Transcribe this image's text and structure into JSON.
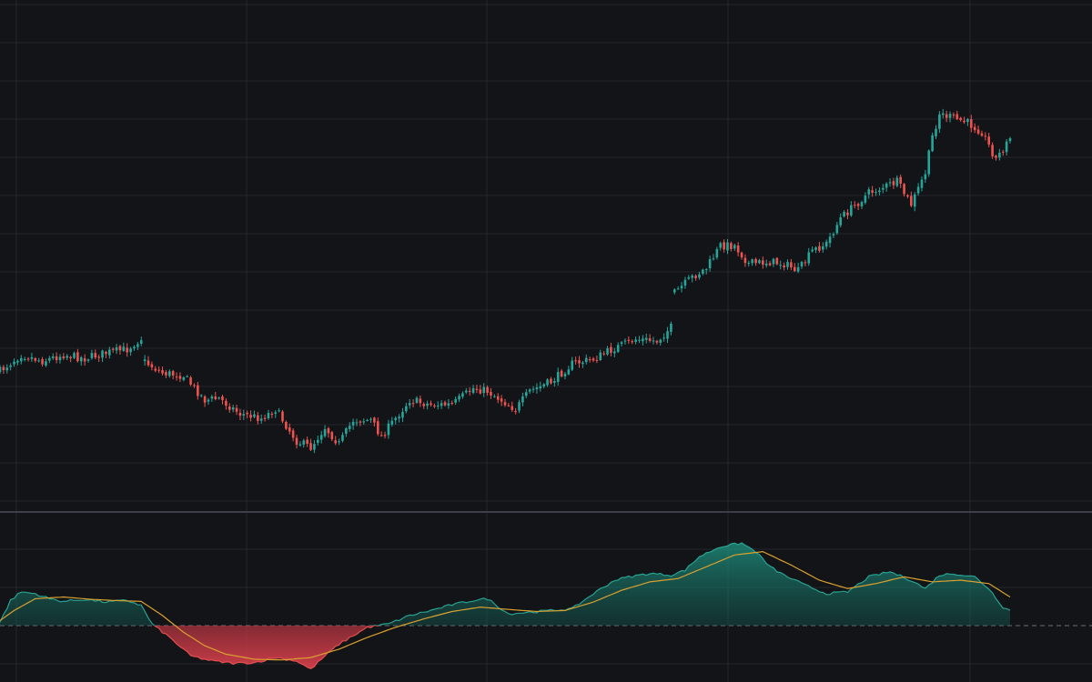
{
  "colors": {
    "background": "#131418",
    "grid": "#24262d",
    "separator": "#3c3f47",
    "up": "#26a69a",
    "down": "#ef5350",
    "signal": "#d9a12f",
    "zero_line": "#6b6e78"
  },
  "chart_data": [
    {
      "type": "candlestick",
      "title": "",
      "grid": true,
      "anchors": [
        {
          "i": 0,
          "c": 408
        },
        {
          "i": 6,
          "c": 390
        },
        {
          "i": 12,
          "c": 397
        },
        {
          "i": 18,
          "c": 390
        },
        {
          "i": 24,
          "c": 394
        },
        {
          "i": 30,
          "c": 388
        },
        {
          "i": 36,
          "c": 384
        },
        {
          "i": 40,
          "c": 372
        },
        {
          "i": 41,
          "c": 398
        },
        {
          "i": 46,
          "c": 410
        },
        {
          "i": 52,
          "c": 413
        },
        {
          "i": 58,
          "c": 440
        },
        {
          "i": 62,
          "c": 438
        },
        {
          "i": 68,
          "c": 455
        },
        {
          "i": 74,
          "c": 460
        },
        {
          "i": 78,
          "c": 450
        },
        {
          "i": 84,
          "c": 485
        },
        {
          "i": 88,
          "c": 492
        },
        {
          "i": 92,
          "c": 470
        },
        {
          "i": 96,
          "c": 488
        },
        {
          "i": 100,
          "c": 462
        },
        {
          "i": 105,
          "c": 462
        },
        {
          "i": 108,
          "c": 480
        },
        {
          "i": 112,
          "c": 460
        },
        {
          "i": 116,
          "c": 440
        },
        {
          "i": 122,
          "c": 445
        },
        {
          "i": 128,
          "c": 445
        },
        {
          "i": 134,
          "c": 427
        },
        {
          "i": 138,
          "c": 430
        },
        {
          "i": 142,
          "c": 440
        },
        {
          "i": 146,
          "c": 450
        },
        {
          "i": 150,
          "c": 430
        },
        {
          "i": 156,
          "c": 420
        },
        {
          "i": 162,
          "c": 400
        },
        {
          "i": 168,
          "c": 395
        },
        {
          "i": 174,
          "c": 383
        },
        {
          "i": 180,
          "c": 373
        },
        {
          "i": 186,
          "c": 375
        },
        {
          "i": 190,
          "c": 360
        },
        {
          "i": 191,
          "c": 322
        },
        {
          "i": 196,
          "c": 305
        },
        {
          "i": 200,
          "c": 295
        },
        {
          "i": 204,
          "c": 270
        },
        {
          "i": 208,
          "c": 270
        },
        {
          "i": 212,
          "c": 290
        },
        {
          "i": 218,
          "c": 288
        },
        {
          "i": 222,
          "c": 290
        },
        {
          "i": 226,
          "c": 298
        },
        {
          "i": 230,
          "c": 276
        },
        {
          "i": 234,
          "c": 268
        },
        {
          "i": 238,
          "c": 240
        },
        {
          "i": 242,
          "c": 226
        },
        {
          "i": 246,
          "c": 212
        },
        {
          "i": 250,
          "c": 206
        },
        {
          "i": 254,
          "c": 200
        },
        {
          "i": 258,
          "c": 225
        },
        {
          "i": 262,
          "c": 190
        },
        {
          "i": 264,
          "c": 150
        },
        {
          "i": 266,
          "c": 125
        },
        {
          "i": 270,
          "c": 130
        },
        {
          "i": 274,
          "c": 135
        },
        {
          "i": 278,
          "c": 145
        },
        {
          "i": 282,
          "c": 175
        },
        {
          "i": 286,
          "c": 152
        }
      ],
      "count": 287
    },
    {
      "type": "area",
      "zero_line": true,
      "series": [
        {
          "color": "#26a69a",
          "points": [
            {
              "i": 0,
              "v": 0.1
            },
            {
              "i": 3,
              "v": 0.75
            },
            {
              "i": 6,
              "v": 1.0
            },
            {
              "i": 10,
              "v": 0.95
            },
            {
              "i": 14,
              "v": 0.8
            },
            {
              "i": 18,
              "v": 0.72
            },
            {
              "i": 24,
              "v": 0.78
            },
            {
              "i": 30,
              "v": 0.7
            },
            {
              "i": 36,
              "v": 0.75
            },
            {
              "i": 40,
              "v": 0.6
            },
            {
              "i": 43,
              "v": 0.05
            },
            {
              "i": 48,
              "v": -0.35
            },
            {
              "i": 54,
              "v": -0.9
            },
            {
              "i": 60,
              "v": -1.05
            },
            {
              "i": 66,
              "v": -1.12
            },
            {
              "i": 72,
              "v": -1.1
            },
            {
              "i": 78,
              "v": -0.95
            },
            {
              "i": 84,
              "v": -1.05
            },
            {
              "i": 88,
              "v": -1.3
            },
            {
              "i": 92,
              "v": -0.9
            },
            {
              "i": 96,
              "v": -0.55
            },
            {
              "i": 100,
              "v": -0.3
            },
            {
              "i": 104,
              "v": -0.05
            },
            {
              "i": 110,
              "v": 0.05
            },
            {
              "i": 116,
              "v": 0.3
            },
            {
              "i": 122,
              "v": 0.45
            },
            {
              "i": 128,
              "v": 0.62
            },
            {
              "i": 134,
              "v": 0.75
            },
            {
              "i": 138,
              "v": 0.8
            },
            {
              "i": 144,
              "v": 0.35
            },
            {
              "i": 150,
              "v": 0.4
            },
            {
              "i": 156,
              "v": 0.45
            },
            {
              "i": 162,
              "v": 0.5
            },
            {
              "i": 168,
              "v": 0.95
            },
            {
              "i": 174,
              "v": 1.35
            },
            {
              "i": 178,
              "v": 1.45
            },
            {
              "i": 184,
              "v": 1.55
            },
            {
              "i": 190,
              "v": 1.5
            },
            {
              "i": 194,
              "v": 1.65
            },
            {
              "i": 198,
              "v": 2.05
            },
            {
              "i": 204,
              "v": 2.35
            },
            {
              "i": 210,
              "v": 2.45
            },
            {
              "i": 214,
              "v": 2.2
            },
            {
              "i": 218,
              "v": 1.75
            },
            {
              "i": 222,
              "v": 1.5
            },
            {
              "i": 228,
              "v": 1.2
            },
            {
              "i": 234,
              "v": 0.95
            },
            {
              "i": 240,
              "v": 1.0
            },
            {
              "i": 246,
              "v": 1.45
            },
            {
              "i": 252,
              "v": 1.6
            },
            {
              "i": 258,
              "v": 1.35
            },
            {
              "i": 262,
              "v": 1.1
            },
            {
              "i": 266,
              "v": 1.5
            },
            {
              "i": 270,
              "v": 1.55
            },
            {
              "i": 276,
              "v": 1.45
            },
            {
              "i": 280,
              "v": 1.1
            },
            {
              "i": 284,
              "v": 0.55
            },
            {
              "i": 286,
              "v": 0.45
            }
          ]
        },
        {
          "color": "#d9a12f",
          "points": [
            {
              "i": 0,
              "v": 0.15
            },
            {
              "i": 4,
              "v": 0.45
            },
            {
              "i": 10,
              "v": 0.8
            },
            {
              "i": 18,
              "v": 0.85
            },
            {
              "i": 26,
              "v": 0.78
            },
            {
              "i": 34,
              "v": 0.74
            },
            {
              "i": 40,
              "v": 0.72
            },
            {
              "i": 46,
              "v": 0.3
            },
            {
              "i": 52,
              "v": -0.2
            },
            {
              "i": 58,
              "v": -0.6
            },
            {
              "i": 64,
              "v": -0.85
            },
            {
              "i": 72,
              "v": -1.0
            },
            {
              "i": 80,
              "v": -1.02
            },
            {
              "i": 88,
              "v": -0.95
            },
            {
              "i": 96,
              "v": -0.7
            },
            {
              "i": 104,
              "v": -0.35
            },
            {
              "i": 112,
              "v": -0.05
            },
            {
              "i": 120,
              "v": 0.2
            },
            {
              "i": 128,
              "v": 0.42
            },
            {
              "i": 136,
              "v": 0.55
            },
            {
              "i": 144,
              "v": 0.48
            },
            {
              "i": 152,
              "v": 0.42
            },
            {
              "i": 160,
              "v": 0.45
            },
            {
              "i": 168,
              "v": 0.7
            },
            {
              "i": 176,
              "v": 1.05
            },
            {
              "i": 184,
              "v": 1.3
            },
            {
              "i": 192,
              "v": 1.4
            },
            {
              "i": 200,
              "v": 1.75
            },
            {
              "i": 208,
              "v": 2.1
            },
            {
              "i": 216,
              "v": 2.2
            },
            {
              "i": 224,
              "v": 1.8
            },
            {
              "i": 232,
              "v": 1.35
            },
            {
              "i": 240,
              "v": 1.1
            },
            {
              "i": 248,
              "v": 1.25
            },
            {
              "i": 256,
              "v": 1.45
            },
            {
              "i": 264,
              "v": 1.3
            },
            {
              "i": 272,
              "v": 1.35
            },
            {
              "i": 280,
              "v": 1.25
            },
            {
              "i": 286,
              "v": 0.85
            }
          ]
        }
      ]
    }
  ]
}
